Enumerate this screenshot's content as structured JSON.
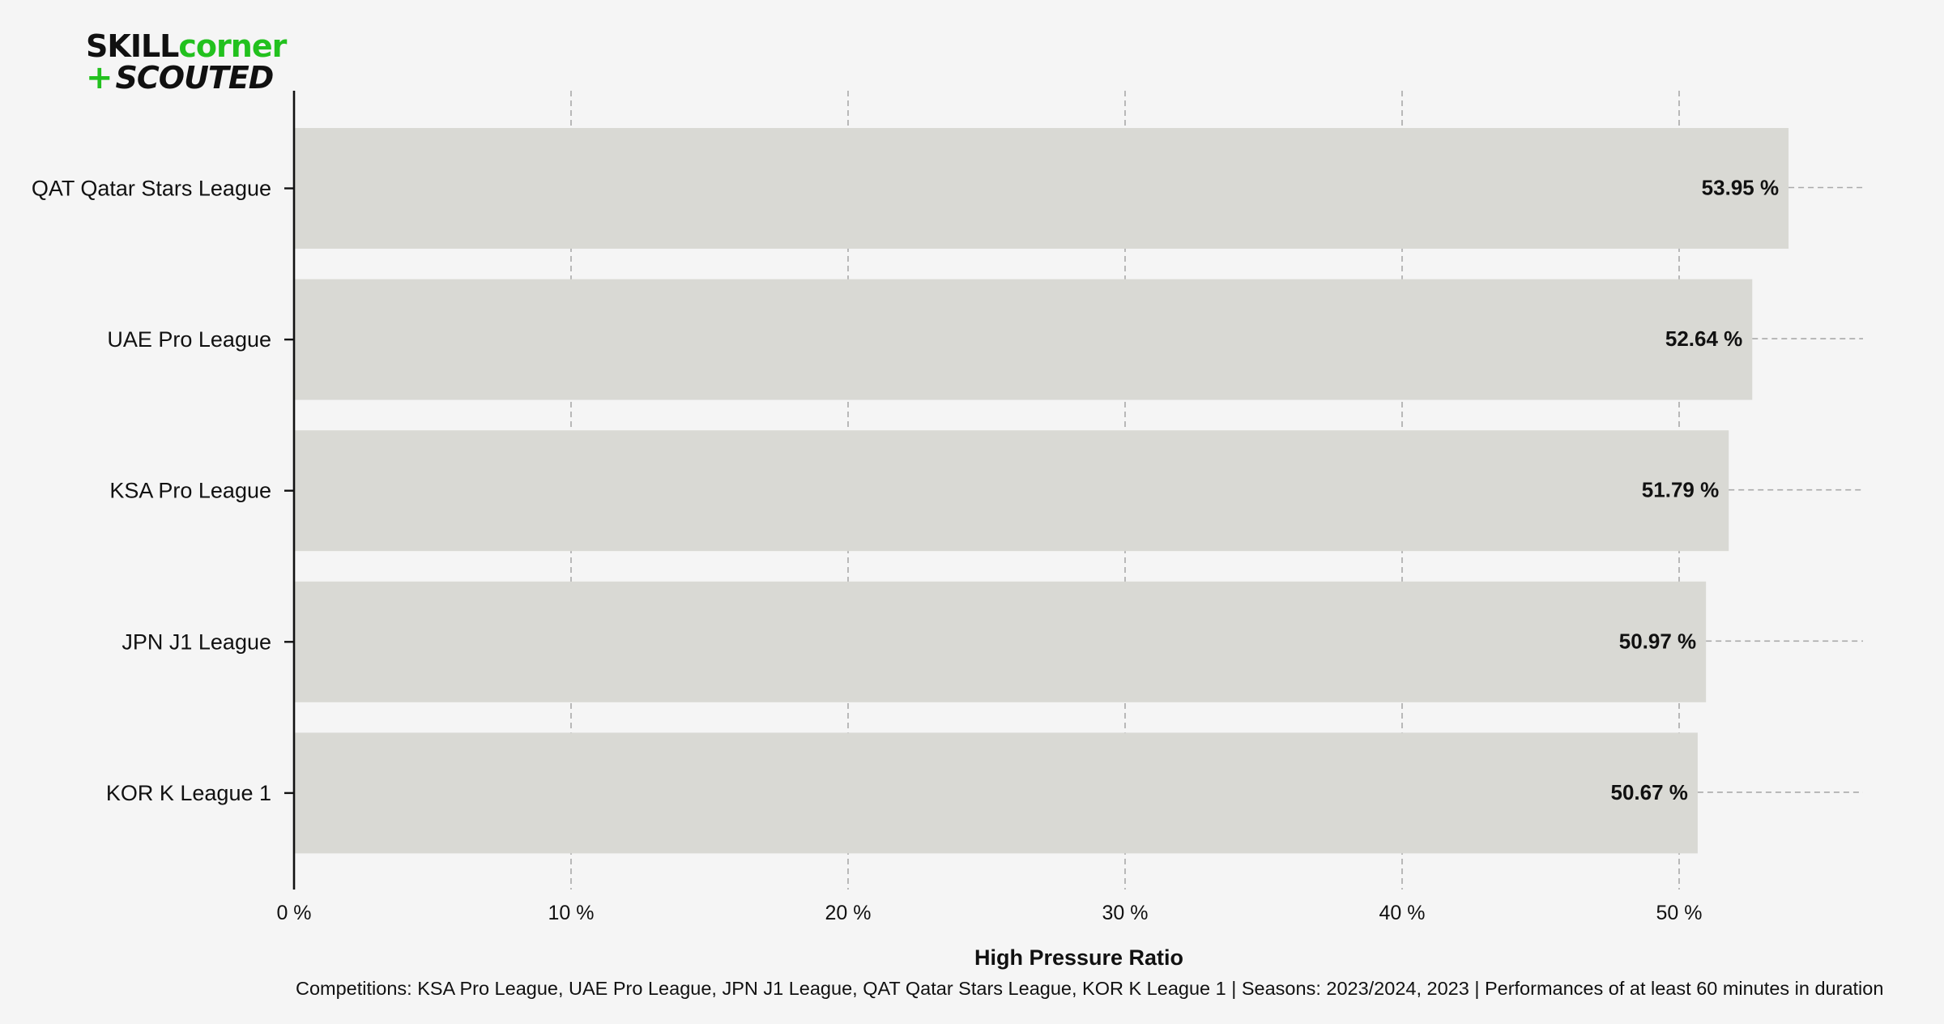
{
  "logo": {
    "line1_part1": "SKILL",
    "line1_part2": "corner",
    "line2_plus": "+",
    "line2_text": "SCOUTED"
  },
  "colors": {
    "background": "#f5f5f5",
    "bar": "#d9d9d4",
    "grid": "#aaaaaa",
    "axis": "#111111",
    "brand_green": "#22c11e"
  },
  "chart_data": {
    "type": "bar",
    "orientation": "horizontal",
    "categories": [
      "QAT Qatar Stars League",
      "UAE Pro League",
      "KSA Pro League",
      "JPN J1 League",
      "KOR K League 1"
    ],
    "values": [
      53.95,
      52.64,
      51.79,
      50.97,
      50.67
    ],
    "value_labels": [
      "53.95 %",
      "52.64 %",
      "51.79 %",
      "50.97 %",
      "50.67 %"
    ],
    "xlabel": "High Pressure Ratio",
    "subtitle": "Competitions: KSA Pro League, UAE Pro League, JPN J1 League, QAT Qatar Stars League, KOR K League 1 | Seasons: 2023/2024, 2023 | Performances of at least 60 minutes in duration",
    "xticks": [
      0,
      10,
      20,
      30,
      40,
      50
    ],
    "xtick_labels": [
      "0 %",
      "10 %",
      "20 %",
      "30 %",
      "40 %",
      "50 %"
    ],
    "xlim": [
      0,
      57
    ],
    "grid": "vertical dashed",
    "legend": "none"
  }
}
